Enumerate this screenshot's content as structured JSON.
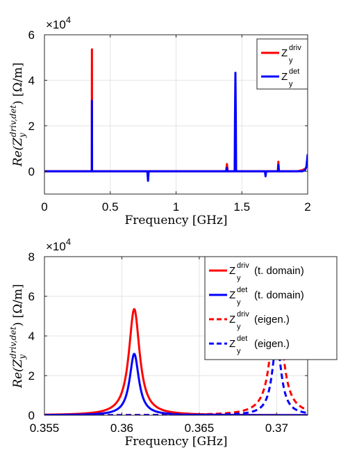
{
  "chart_data": [
    {
      "type": "line",
      "xlabel": "Frequency [GHz]",
      "ylabel": "Re(Z_y^{driv,det}) [Ω/m]",
      "ylabel_parts": {
        "base": "Re(Z",
        "sub": "y",
        "sup": "driv,det",
        "tail": ") [Ω/m]"
      },
      "multiplier_base": "×10",
      "multiplier_exp": "4",
      "xlim": [
        0,
        2
      ],
      "ylim": [
        -1,
        6
      ],
      "xticks": [
        0,
        0.5,
        1,
        1.5,
        2
      ],
      "xticklabels": [
        "0",
        "0.5",
        "1",
        "1.5",
        "2"
      ],
      "yticks": [
        0,
        2,
        4,
        6
      ],
      "yticklabels": [
        "0",
        "2",
        "4",
        "6"
      ],
      "grid": true,
      "legend_position": "top-right",
      "series": [
        {
          "name_base": "Z",
          "name_sup": "driv",
          "name_sub": "y",
          "name_suffix": "",
          "color": "#ff0000",
          "dash": "",
          "x": [
            0,
            0.3599,
            0.3602,
            0.3605,
            0.3608,
            0.3611,
            0.3614,
            0.3617,
            1.38,
            1.3865,
            1.393,
            1.448,
            1.451,
            1.454,
            1.773,
            1.7775,
            1.782,
            1.92,
            1.96,
            1.985,
            2.0
          ],
          "y": [
            0,
            0,
            2.0,
            4.5,
            5.36,
            4.5,
            2.0,
            0,
            0,
            0.32,
            0,
            0,
            0.12,
            0,
            0,
            0.42,
            0,
            0,
            0.05,
            0.12,
            0.35
          ]
        },
        {
          "name_base": "Z",
          "name_sup": "det",
          "name_sub": "y",
          "name_suffix": "",
          "color": "#0000ff",
          "dash": "",
          "x": [
            0,
            0.3599,
            0.3602,
            0.3605,
            0.3608,
            0.3611,
            0.3614,
            0.3617,
            0.782,
            0.787,
            0.792,
            1.383,
            1.3865,
            1.39,
            1.4455,
            1.448,
            1.451,
            1.454,
            1.4565,
            1.675,
            1.68,
            1.685,
            1.775,
            1.7775,
            1.78,
            1.96,
            1.98,
            1.99,
            1.995,
            2.0
          ],
          "y": [
            0,
            0,
            1.2,
            2.6,
            3.1,
            2.6,
            1.2,
            0,
            0,
            -0.42,
            0,
            0,
            0.15,
            0,
            0,
            2.5,
            4.33,
            2.5,
            0,
            0,
            -0.22,
            0,
            0,
            0.28,
            0,
            0,
            0.05,
            0.2,
            0.45,
            0.75
          ]
        }
      ]
    },
    {
      "type": "line",
      "xlabel": "Frequency [GHz]",
      "ylabel": "Re(Z_y^{driv,det}) [Ω/m]",
      "ylabel_parts": {
        "base": "Re(Z",
        "sub": "y",
        "sup": "driv,det",
        "tail": ") [Ω/m]"
      },
      "multiplier_base": "×10",
      "multiplier_exp": "4",
      "xlim": [
        0.355,
        0.372
      ],
      "ylim": [
        0,
        8
      ],
      "xticks": [
        0.355,
        0.36,
        0.365,
        0.37
      ],
      "xticklabels": [
        "0.355",
        "0.36",
        "0.365",
        "0.37"
      ],
      "yticks": [
        0,
        2,
        4,
        6,
        8
      ],
      "yticklabels": [
        "0",
        "2",
        "4",
        "6",
        "8"
      ],
      "grid": true,
      "legend_position": "outside-right",
      "series": [
        {
          "name_base": "Z",
          "name_sup": "driv",
          "name_sub": "y",
          "name_suffix": " (t. domain)",
          "color": "#ff0000",
          "dash": "",
          "peak": {
            "x0": 0.3608,
            "h": 5.36,
            "gamma": 0.00042
          }
        },
        {
          "name_base": "Z",
          "name_sup": "det",
          "name_sub": "y",
          "name_suffix": " (t. domain)",
          "color": "#0000ff",
          "dash": "",
          "peak": {
            "x0": 0.3608,
            "h": 3.1,
            "gamma": 0.00036
          }
        },
        {
          "name_base": "Z",
          "name_sup": "driv",
          "name_sub": "y",
          "name_suffix": " (eigen.)",
          "color": "#ff0000",
          "dash": "8,5",
          "peak": {
            "x0": 0.37,
            "h": 6.35,
            "gamma": 0.00042
          }
        },
        {
          "name_base": "Z",
          "name_sup": "det",
          "name_sub": "y",
          "name_suffix": " (eigen.)",
          "color": "#0000ff",
          "dash": "8,5",
          "peak": {
            "x0": 0.37,
            "h": 3.65,
            "gamma": 0.00036
          }
        }
      ]
    }
  ]
}
